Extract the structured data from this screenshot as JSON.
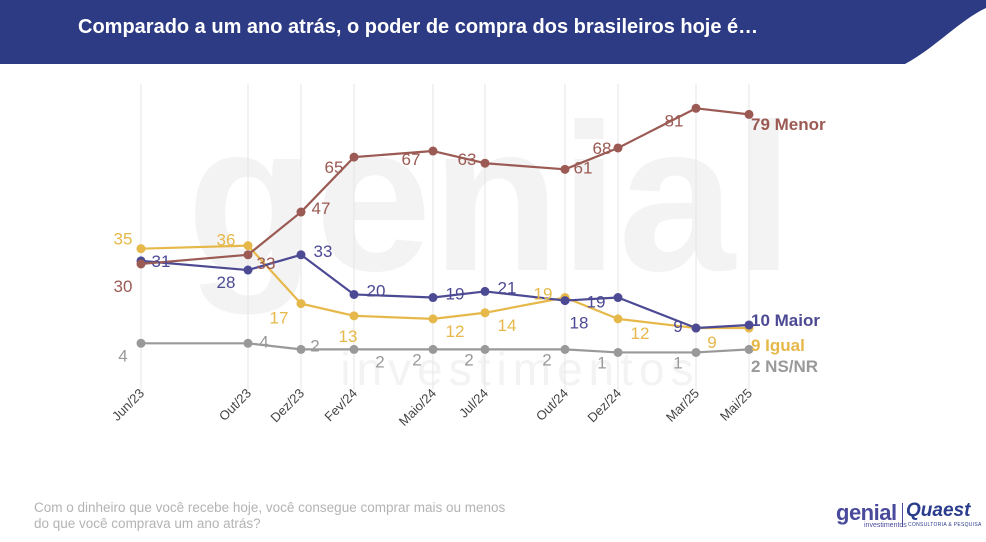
{
  "header": {
    "title": "Comparado a um ano atrás, o poder de compra dos brasileiros hoje é…",
    "background_color": "#2d3b84"
  },
  "footer": {
    "question_line1": "Com o dinheiro que você recebe hoje, você consegue comprar mais ou menos",
    "question_line2": "do que você comprava um ano atrás?"
  },
  "logos": {
    "genial": "genial",
    "genial_sub": "investimentos",
    "quaest": "Quaest",
    "quaest_sub": "CONSULTORIA & PESQUISA"
  },
  "watermark": {
    "text": "genial",
    "subtext": "investimentos"
  },
  "chart_data": {
    "type": "line",
    "x": [
      "Jun/23",
      "Out/23",
      "Dez/23",
      "Fev/24",
      "Maio/24",
      "Jul/24",
      "Out/24",
      "Dez/24",
      "Mar/25",
      "Mai/25"
    ],
    "series": [
      {
        "name": "Menor",
        "end_label": "79 Menor",
        "color": "#9b5a53",
        "values": [
          30,
          33,
          47,
          65,
          67,
          63,
          61,
          68,
          81,
          79
        ]
      },
      {
        "name": "Maior",
        "end_label": "10 Maior",
        "color": "#4d4a94",
        "values": [
          31,
          28,
          33,
          20,
          19,
          21,
          18,
          19,
          9,
          10
        ]
      },
      {
        "name": "Igual",
        "end_label": "9 Igual",
        "color": "#e6b84a",
        "values": [
          35,
          36,
          17,
          13,
          12,
          14,
          19,
          12,
          9,
          9
        ]
      },
      {
        "name": "NS/NR",
        "end_label": "2 NS/NR",
        "color": "#999999",
        "values": [
          4,
          4,
          2,
          2,
          2,
          2,
          2,
          1,
          1,
          2
        ]
      }
    ],
    "grid": "vertical",
    "legend": "end-of-line labels"
  }
}
